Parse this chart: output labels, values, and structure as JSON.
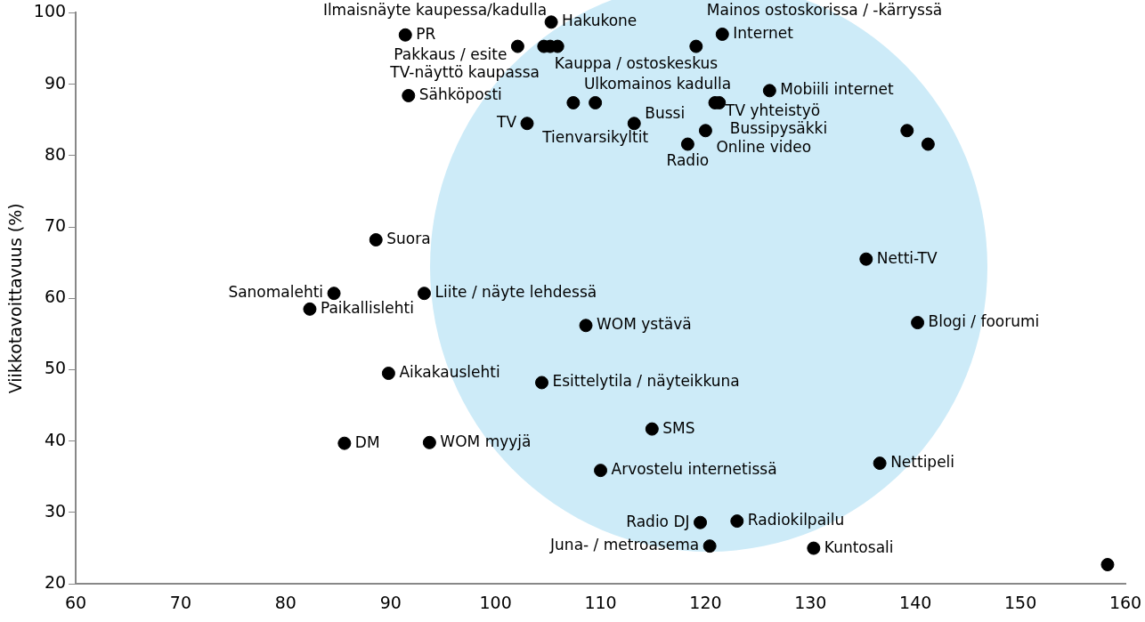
{
  "chart_data": {
    "type": "scatter",
    "ylabel": "Viikkotavoittavuus (%)",
    "xlim": [
      60,
      160
    ],
    "ylim": [
      20,
      100
    ],
    "xticks": [
      60,
      70,
      80,
      90,
      100,
      110,
      120,
      130,
      140,
      150,
      160
    ],
    "yticks": [
      20,
      30,
      40,
      50,
      60,
      70,
      80,
      90,
      100
    ],
    "grid": false,
    "legend": false,
    "marker": "circle",
    "series": [
      {
        "color": "#000000",
        "x": [
          91.4,
          105.3,
          102.1,
          104.6,
          105.2,
          105.9,
          121.6,
          119.1,
          91.7,
          107.4,
          109.5,
          103.0,
          113.2,
          120.9,
          121.3,
          126.1,
          120.0,
          118.3,
          139.2,
          141.2,
          88.6,
          84.6,
          82.3,
          93.2,
          108.6,
          135.3,
          140.2,
          89.8,
          104.4,
          85.6,
          93.7,
          114.9,
          110.0,
          136.6,
          119.5,
          123.0,
          120.4,
          130.3,
          158.3
        ],
        "values": [
          96.9,
          98.7,
          95.3,
          95.3,
          95.3,
          95.3,
          97.0,
          95.3,
          88.4,
          87.4,
          87.4,
          84.5,
          84.5,
          87.4,
          87.4,
          89.1,
          83.5,
          81.6,
          83.5,
          81.6,
          68.2,
          60.7,
          58.5,
          60.7,
          56.2,
          65.5,
          56.6,
          49.5,
          48.2,
          39.7,
          39.8,
          41.7,
          35.9,
          36.9,
          28.6,
          28.8,
          25.3,
          25.0,
          22.7
        ]
      }
    ],
    "annotations": [
      {
        "text": "PR",
        "x": 91.4,
        "y": 96.9
      },
      {
        "text": "Hakukone",
        "x": 105.3,
        "y": 98.7
      },
      {
        "text": "Pakkaus / esite",
        "x": 102.1,
        "y": 95.3
      },
      {
        "text": "Kauppa / ostoskeskus",
        "x": 104.6,
        "y": 95.3
      },
      {
        "text": "TV-näyttö kaupassa",
        "x": 105.2,
        "y": 95.3
      },
      {
        "text": "Ilmaisnäyte kaupessa/kadulla",
        "x": 105.9,
        "y": 95.3
      },
      {
        "text": "Internet",
        "x": 121.6,
        "y": 97.0
      },
      {
        "text": "Mainos ostoskorissa / -kärryssä",
        "x": 119.1,
        "y": 95.3
      },
      {
        "text": "Sähköposti",
        "x": 91.7,
        "y": 88.4
      },
      {
        "text": "Ulkomainos kadulla",
        "x": 107.4,
        "y": 87.4
      },
      {
        "text": "Tienvarsikyltit",
        "x": 109.5,
        "y": 87.4
      },
      {
        "text": "TV",
        "x": 103.0,
        "y": 84.5
      },
      {
        "text": "Bussi",
        "x": 113.2,
        "y": 84.5
      },
      {
        "text": "TV yhteistyö",
        "x": 120.9,
        "y": 87.4
      },
      {
        "text": "Bussipysäkki",
        "x": 121.3,
        "y": 87.4
      },
      {
        "text": "Mobiili internet",
        "x": 126.1,
        "y": 89.1
      },
      {
        "text": "Online video",
        "x": 120.0,
        "y": 83.5
      },
      {
        "text": "Radio",
        "x": 118.3,
        "y": 81.6
      },
      {
        "text": "Suora",
        "x": 88.6,
        "y": 68.2
      },
      {
        "text": "Sanomalehti",
        "x": 84.6,
        "y": 60.7
      },
      {
        "text": "Paikallislehti",
        "x": 82.3,
        "y": 58.5
      },
      {
        "text": "Liite / näyte lehdessä",
        "x": 93.2,
        "y": 60.7
      },
      {
        "text": "WOM ystävä",
        "x": 108.6,
        "y": 56.2
      },
      {
        "text": "Netti-TV",
        "x": 135.3,
        "y": 65.5
      },
      {
        "text": "Blogi / foorumi",
        "x": 140.2,
        "y": 56.6
      },
      {
        "text": "Aikakauslehti",
        "x": 89.8,
        "y": 49.5
      },
      {
        "text": "Esittelytila / näyteikkuna",
        "x": 104.4,
        "y": 48.2
      },
      {
        "text": "DM",
        "x": 85.6,
        "y": 39.7
      },
      {
        "text": "WOM myyjä",
        "x": 93.7,
        "y": 39.8
      },
      {
        "text": "SMS",
        "x": 114.9,
        "y": 41.7
      },
      {
        "text": "Arvostelu internetissä",
        "x": 110.0,
        "y": 35.9
      },
      {
        "text": "Nettipeli",
        "x": 136.6,
        "y": 36.9
      },
      {
        "text": "Radio DJ",
        "x": 119.5,
        "y": 28.6
      },
      {
        "text": "Radiokilpailu",
        "x": 123.0,
        "y": 28.8
      },
      {
        "text": "Juna- / metroasema",
        "x": 120.4,
        "y": 25.3
      },
      {
        "text": "Kuntosali",
        "x": 130.3,
        "y": 25.0
      }
    ]
  }
}
